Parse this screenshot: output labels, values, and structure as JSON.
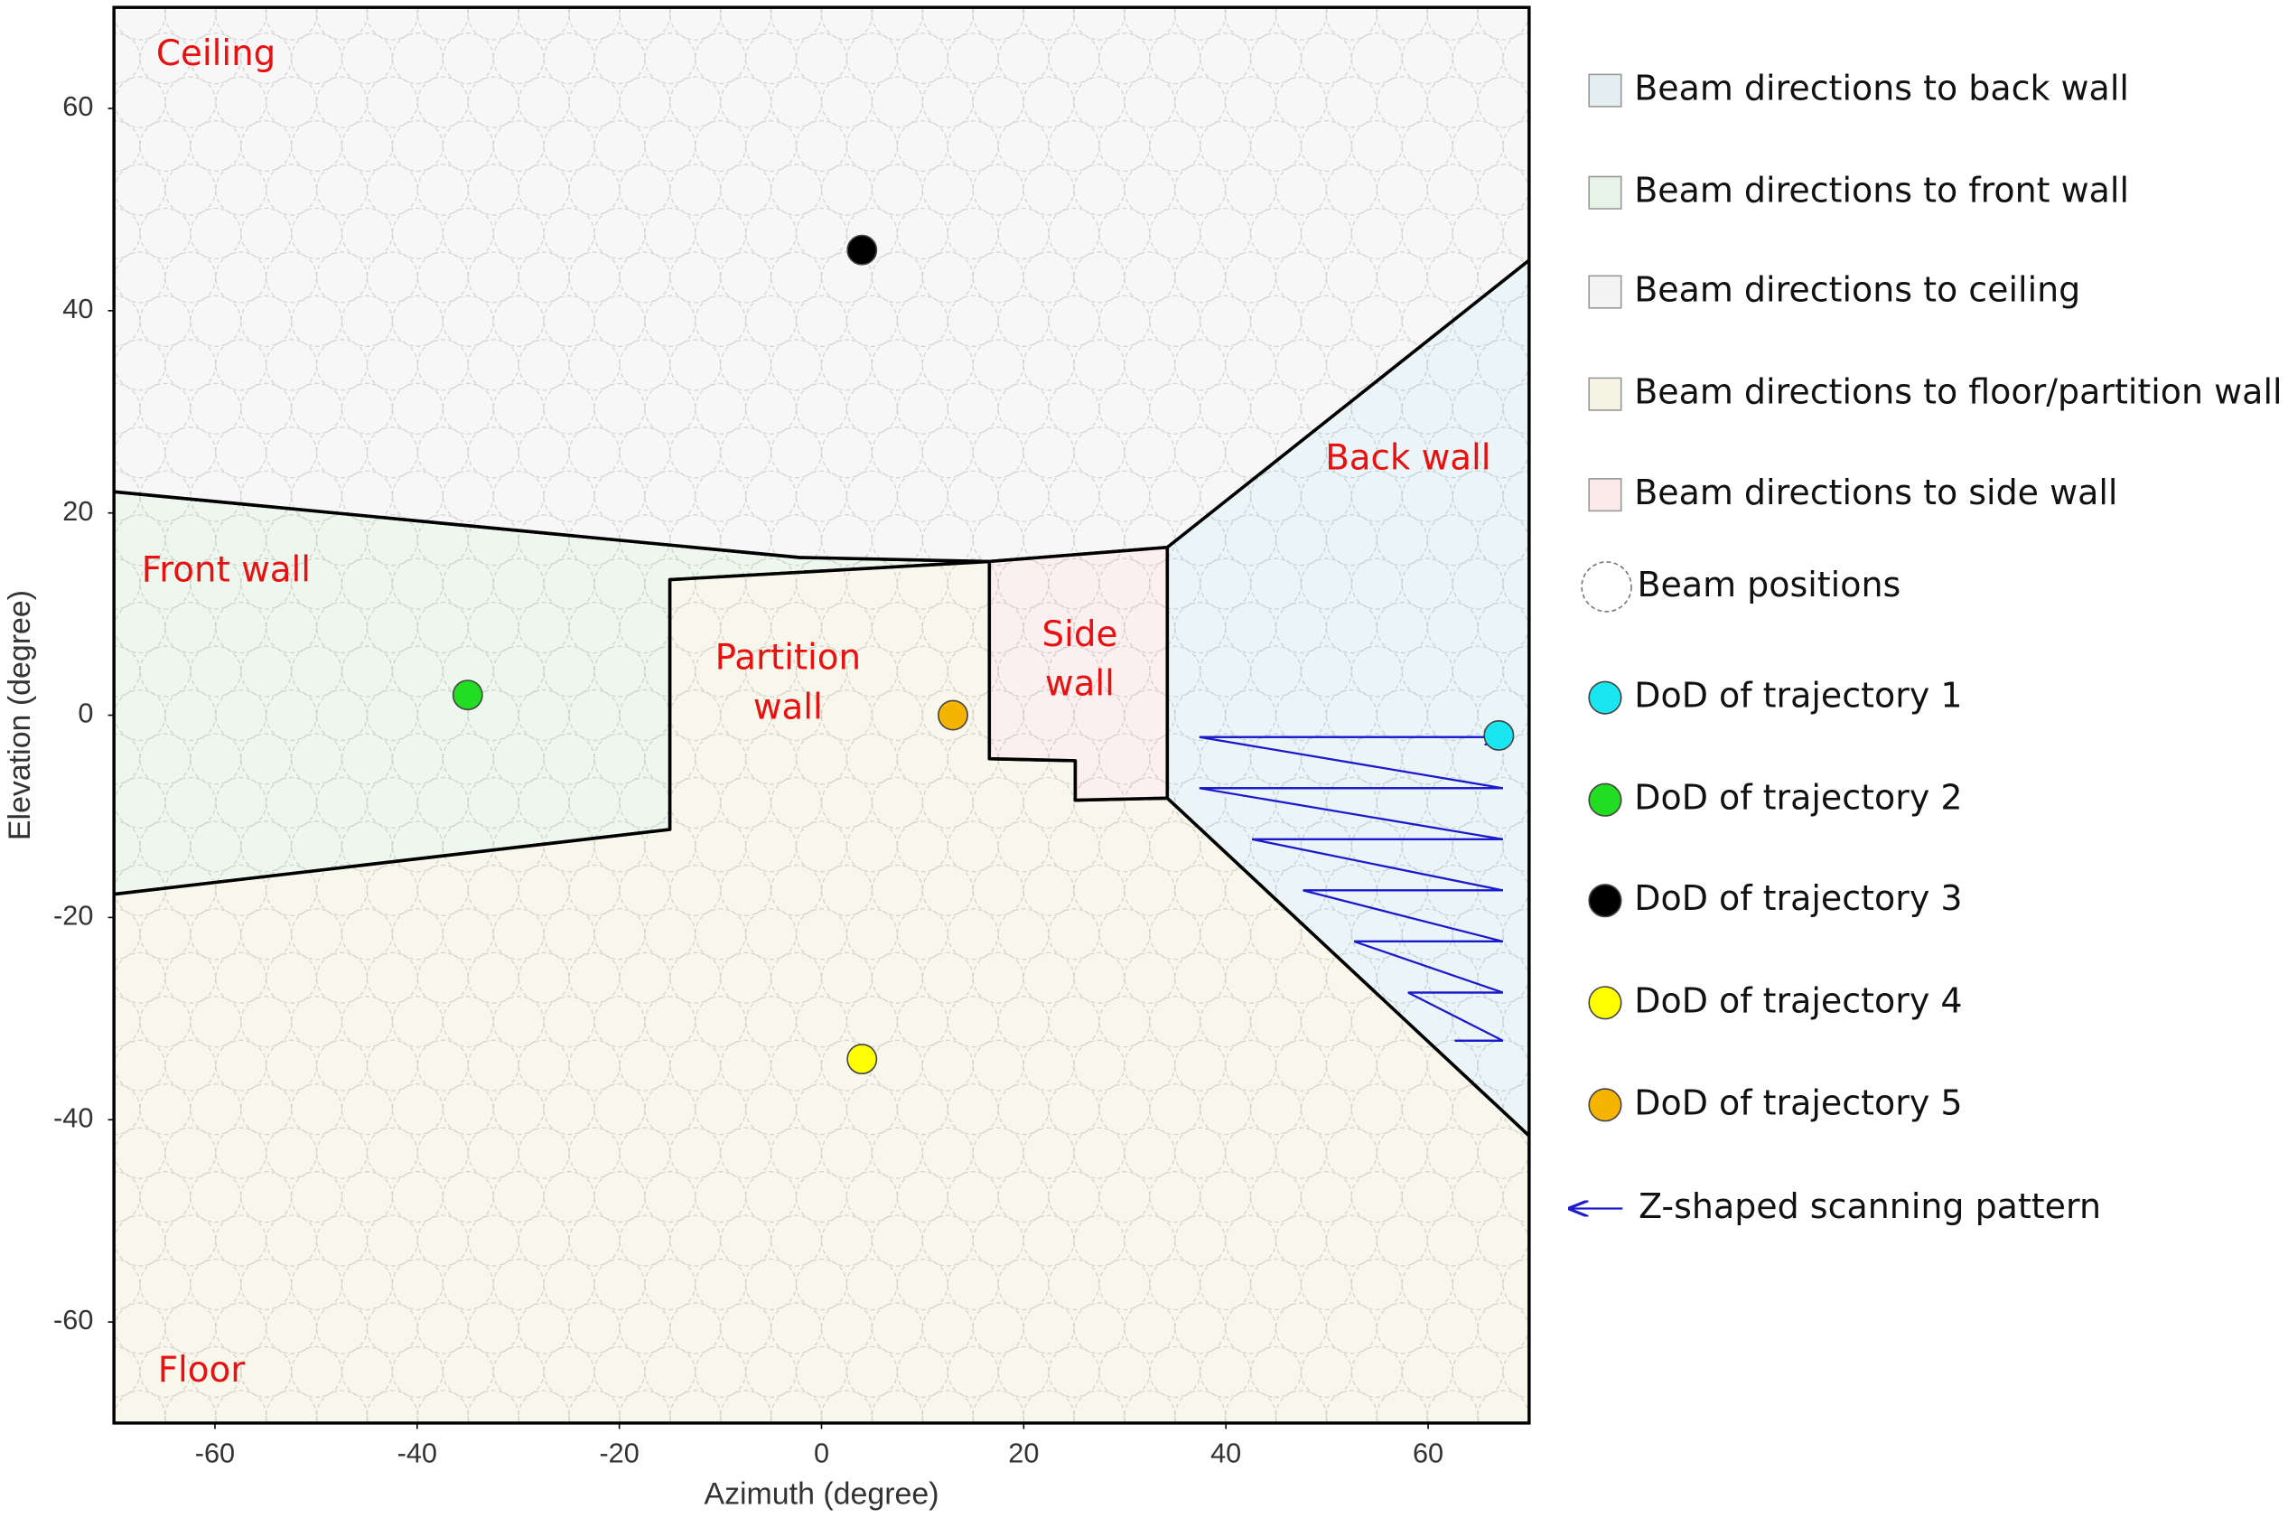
{
  "chart_data": {
    "type": "scatter",
    "xlabel": "Azimuth (degree)",
    "ylabel": "Elevation (degree)",
    "xlim": [
      -70,
      70
    ],
    "ylim": [
      -70,
      70
    ],
    "xticks": [
      -60,
      -40,
      -20,
      0,
      20,
      40,
      60
    ],
    "yticks": [
      -60,
      -40,
      -20,
      0,
      20,
      40,
      60
    ],
    "regions": [
      {
        "name": "Beam directions to back wall",
        "color": "#e3eff2",
        "x": [
          34.2,
          70,
          70,
          34.2
        ],
        "y": [
          16.6,
          45,
          -41.6,
          -8.2
        ]
      },
      {
        "name": "Beam directions to front wall",
        "color": "#e6f3e6",
        "x": [
          -70,
          -2.2,
          16.6,
          -15,
          -15,
          -70
        ],
        "y": [
          22.1,
          15.6,
          15.2,
          13.4,
          -11.3,
          -17.7
        ]
      },
      {
        "name": "Beam directions to ceiling",
        "color": "#f3f3f3",
        "x": [
          -70,
          70,
          70,
          34.2,
          16.6,
          -2.2,
          -70
        ],
        "y": [
          70,
          70,
          45,
          16.6,
          15.2,
          15.6,
          22.1
        ]
      },
      {
        "name": "Beam directions to floor/partition wall",
        "color": "#f4f3e4",
        "x": [
          -70,
          -15,
          -15,
          16.6,
          16.6,
          25.1,
          25.1,
          34.2,
          70,
          70,
          -70
        ],
        "y": [
          -17.7,
          -11.3,
          13.4,
          15.2,
          -4.3,
          -4.5,
          -8.4,
          -8.2,
          -41.6,
          -70,
          -70
        ]
      },
      {
        "name": "Beam directions to side wall",
        "color": "#fbe8e8",
        "x": [
          16.6,
          34.2,
          34.2,
          25.1,
          25.1,
          16.6
        ],
        "y": [
          15.2,
          16.6,
          -8.2,
          -8.4,
          -4.5,
          -4.3
        ]
      }
    ],
    "beam_positions_label": "Beam positions",
    "series": [
      {
        "name": "DoD of trajectory 1",
        "color": "#19e6f0",
        "x": [
          67
        ],
        "values": [
          -2
        ]
      },
      {
        "name": "DoD of trajectory 2",
        "color": "#22dd22",
        "x": [
          -35
        ],
        "values": [
          2
        ]
      },
      {
        "name": "DoD of trajectory 3",
        "color": "#000000",
        "x": [
          4
        ],
        "values": [
          46
        ]
      },
      {
        "name": "DoD of trajectory 4",
        "color": "#ffff00",
        "x": [
          4
        ],
        "values": [
          -34
        ]
      },
      {
        "name": "DoD of trajectory 5",
        "color": "#f5b400",
        "x": [
          13
        ],
        "values": [
          0
        ]
      }
    ],
    "scan_pattern_label": "Z-shaped scanning pattern",
    "annotations": [
      [
        "Ceiling"
      ],
      [
        "Front wall"
      ],
      [
        "Partition",
        "wall"
      ],
      [
        "Side",
        "wall"
      ],
      [
        "Back wall"
      ],
      [
        "Floor"
      ]
    ]
  }
}
